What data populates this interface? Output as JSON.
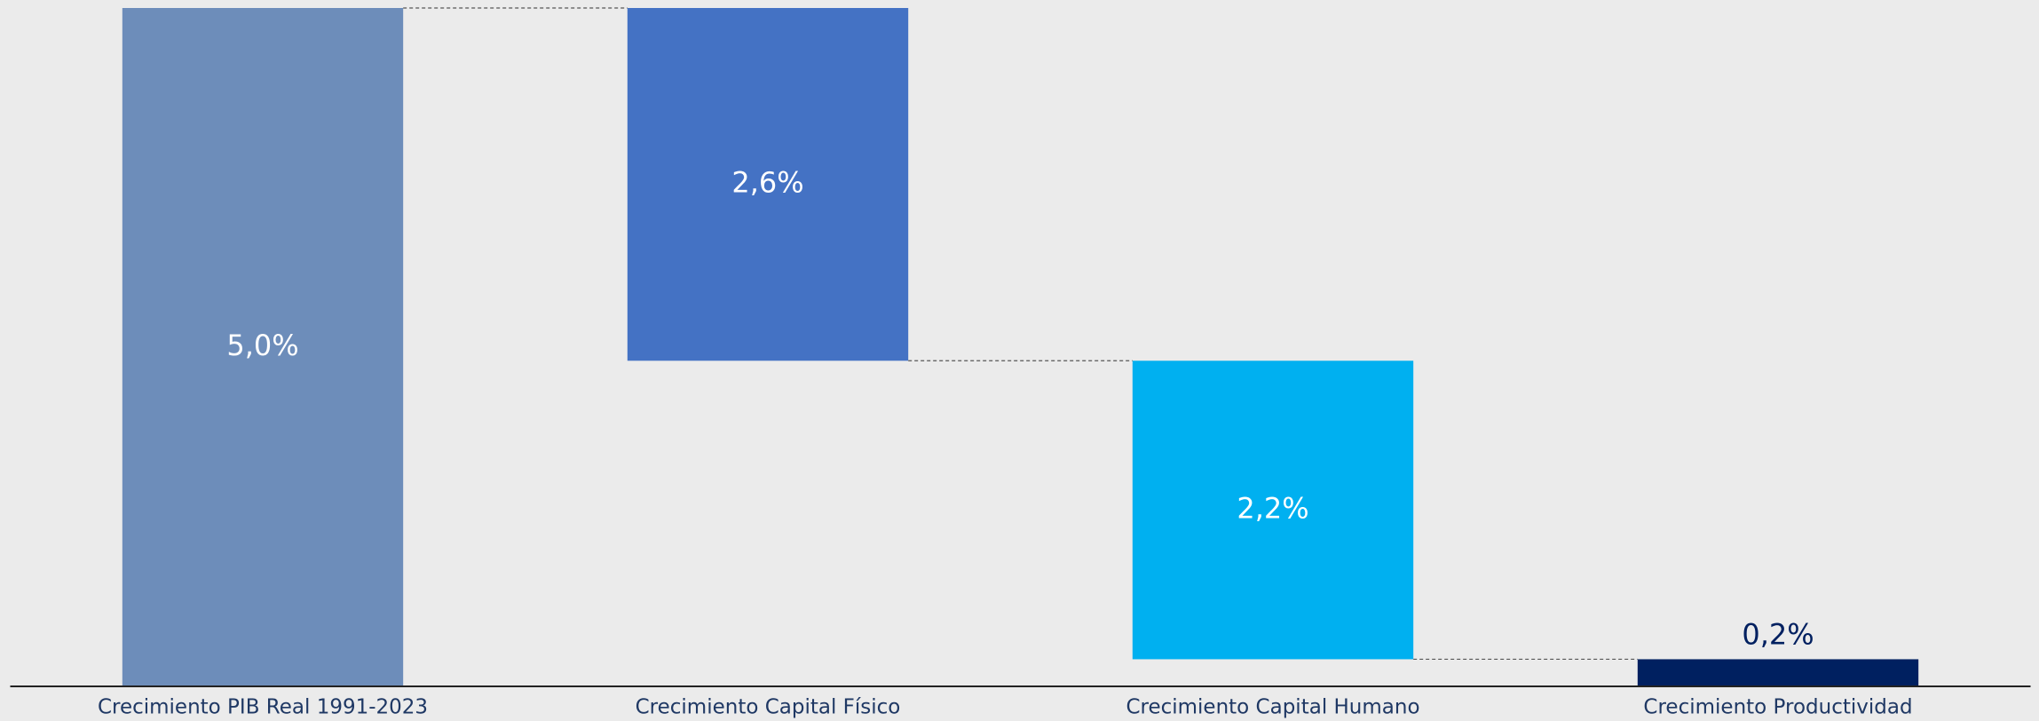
{
  "chart_data": {
    "type": "waterfall",
    "categories": [
      "Crecimiento PIB Real 1991-2023",
      "Crecimiento Capital Físico",
      "Crecimiento Capital Humano",
      "Crecimiento Productividad"
    ],
    "values": [
      5.0,
      2.6,
      2.2,
      0.2
    ],
    "value_labels": [
      "5,0%",
      "2,6%",
      "2,2%",
      "0,2%"
    ],
    "measure": [
      "total",
      "decrease",
      "decrease",
      "total"
    ],
    "colors": [
      "#6d8dba",
      "#4472c4",
      "#00b0f0",
      "#002060"
    ],
    "ylim": [
      0,
      5
    ]
  }
}
